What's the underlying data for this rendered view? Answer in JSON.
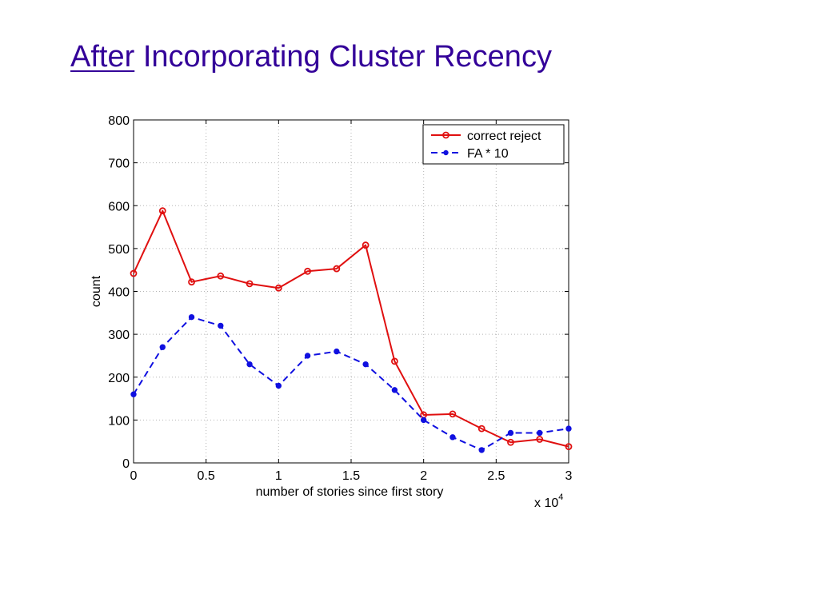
{
  "slide": {
    "title_prefix": "After",
    "title_rest": "Incorporating Cluster Recency"
  },
  "chart_data": {
    "type": "line",
    "title": "",
    "xlabel": "number of stories since first story",
    "ylabel": "count",
    "x_multiplier_label": "x 10",
    "x_multiplier_exponent": "4",
    "xlim": [
      0,
      30000
    ],
    "ylim": [
      0,
      800
    ],
    "xticks": [
      0,
      5000,
      10000,
      15000,
      20000,
      25000,
      30000
    ],
    "xtick_labels": [
      "0",
      "0.5",
      "1",
      "1.5",
      "2",
      "2.5",
      "3"
    ],
    "yticks": [
      0,
      100,
      200,
      300,
      400,
      500,
      600,
      700,
      800
    ],
    "ytick_labels": [
      "0",
      "100",
      "200",
      "300",
      "400",
      "500",
      "600",
      "700",
      "800"
    ],
    "grid": true,
    "legend_position": "top-right",
    "x": [
      0,
      2000,
      4000,
      6000,
      8000,
      10000,
      12000,
      14000,
      16000,
      18000,
      20000,
      22000,
      24000,
      26000,
      28000,
      30000
    ],
    "series": [
      {
        "name": "correct reject",
        "color": "#e01010",
        "style": "solid",
        "marker": "circle",
        "values": [
          442,
          588,
          422,
          436,
          418,
          408,
          447,
          453,
          508,
          237,
          112,
          114,
          80,
          48,
          55,
          38
        ]
      },
      {
        "name": "FA * 10",
        "color": "#1010e0",
        "style": "dashed",
        "marker": "dot",
        "values": [
          160,
          270,
          340,
          320,
          230,
          180,
          250,
          260,
          230,
          170,
          100,
          60,
          30,
          70,
          70,
          80
        ]
      }
    ]
  }
}
